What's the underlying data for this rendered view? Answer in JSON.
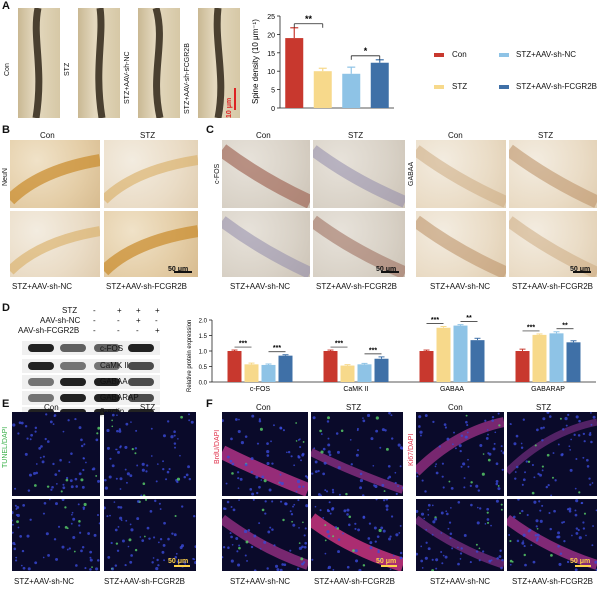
{
  "panel_letters": [
    "A",
    "B",
    "C",
    "D",
    "E",
    "F"
  ],
  "panelA": {
    "image_labels": [
      "Con",
      "STZ",
      "STZ+AAV-sh-NC",
      "STZ+AAV-sh-FCGR2B"
    ],
    "scale_bar": "10 μm"
  },
  "legend": [
    "Con",
    "STZ",
    "STZ+AAV-sh-NC",
    "STZ+AAV-sh-FCGR2B"
  ],
  "colors": {
    "Con": "#c8382e",
    "STZ": "#f7d98b",
    "STZ+AAV-sh-NC": "#8ec3e6",
    "STZ+AAV-sh-FCGR2B": "#3f70a7"
  },
  "panelB": {
    "side_label": "NeuN",
    "top": [
      "Con",
      "STZ"
    ],
    "bottom": [
      "STZ+AAV-sh-NC",
      "STZ+AAV-sh-FCGR2B"
    ],
    "scale_bar": "50 μm"
  },
  "panelC": {
    "left": {
      "side_label": "c-FOS",
      "top": [
        "Con",
        "STZ"
      ],
      "bottom": [
        "STZ+AAV-sh-NC",
        "STZ+AAV-sh-FCGR2B"
      ],
      "scale_bar": "50 μm"
    },
    "right": {
      "side_label": "GABAA",
      "top": [
        "Con",
        "STZ"
      ],
      "bottom": [
        "STZ+AAV-sh-NC",
        "STZ+AAV-sh-FCGR2B"
      ],
      "scale_bar": "50 μm"
    }
  },
  "panelD": {
    "conditions": [
      {
        "label": "STZ",
        "marks": [
          "-",
          "+",
          "+",
          "+"
        ]
      },
      {
        "label": "AAV-sh-NC",
        "marks": [
          "-",
          "-",
          "+",
          "-"
        ]
      },
      {
        "label": "AAV-sh-FCGR2B",
        "marks": [
          "-",
          "-",
          "-",
          "+"
        ]
      }
    ],
    "blot_labels": [
      "c-FOS",
      "CaMK II",
      "GABAA",
      "GABARAP",
      "β-actin"
    ]
  },
  "panelE": {
    "side_label": "TUNEL/DAPI",
    "top": [
      "Con",
      "STZ"
    ],
    "bottom": [
      "STZ+AAV-sh-NC",
      "STZ+AAV-sh-FCGR2B"
    ],
    "scale_bar": "50 μm"
  },
  "panelF": {
    "left": {
      "side_label": "BrdU/DAPI",
      "top": [
        "Con",
        "STZ"
      ],
      "bottom": [
        "STZ+AAV-sh-NC",
        "STZ+AAV-sh-FCGR2B"
      ],
      "scale_bar": "50 μm"
    },
    "right": {
      "side_label": "Ki67/DAPI",
      "top": [
        "Con",
        "STZ"
      ],
      "bottom": [
        "STZ+AAV-sh-NC",
        "STZ+AAV-sh-FCGR2B"
      ],
      "scale_bar": "50 μm"
    }
  },
  "chart_data": [
    {
      "type": "bar",
      "ylabel": "Spine density (10 μm⁻¹)",
      "ylim": [
        0,
        25
      ],
      "yticks": [
        0,
        5,
        10,
        15,
        20,
        25
      ],
      "categories": [
        "Con",
        "STZ",
        "STZ+AAV-sh-NC",
        "STZ+AAV-sh-FCGR2B"
      ],
      "values": [
        19.0,
        10.0,
        9.3,
        12.3
      ],
      "errors": [
        2.8,
        0.8,
        1.8,
        0.8
      ],
      "significance": [
        {
          "from": 0,
          "to": 1,
          "label": "**"
        },
        {
          "from": 2,
          "to": 3,
          "label": "*"
        }
      ]
    },
    {
      "type": "bar",
      "ylabel": "Relative protein expression",
      "ylim": [
        0,
        2.0
      ],
      "yticks": [
        "0.0",
        "0.5",
        "1.0",
        "1.5",
        "2.0"
      ],
      "categories": [
        "c-FOS",
        "CaMK II",
        "GABAA",
        "GABARAP"
      ],
      "series": [
        {
          "name": "Con",
          "values": [
            1.0,
            1.0,
            1.0,
            1.0
          ],
          "errors": [
            0.03,
            0.03,
            0.03,
            0.06
          ]
        },
        {
          "name": "STZ",
          "values": [
            0.57,
            0.53,
            1.75,
            1.52
          ],
          "errors": [
            0.04,
            0.03,
            0.04,
            0.03
          ]
        },
        {
          "name": "STZ+AAV-sh-NC",
          "values": [
            0.55,
            0.57,
            1.82,
            1.57
          ],
          "errors": [
            0.03,
            0.03,
            0.03,
            0.05
          ]
        },
        {
          "name": "STZ+AAV-sh-FCGR2B",
          "values": [
            0.85,
            0.75,
            1.35,
            1.28
          ],
          "errors": [
            0.03,
            0.06,
            0.06,
            0.05
          ]
        }
      ],
      "significance_label": "***",
      "significance_label_2": "**"
    }
  ]
}
